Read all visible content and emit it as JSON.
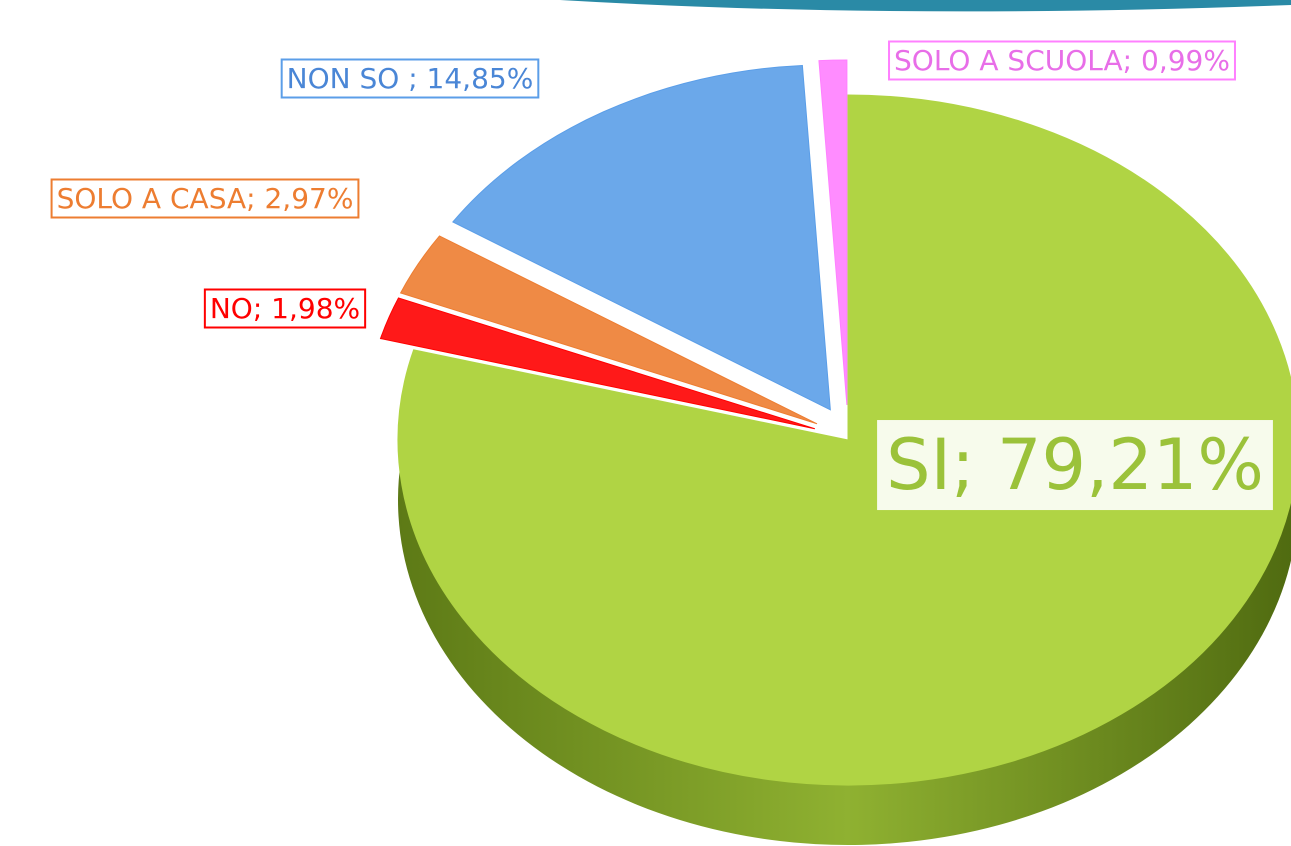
{
  "chart_data": {
    "type": "pie",
    "values": [
      79.21,
      1.98,
      2.97,
      14.85,
      0.99
    ],
    "value_labels": [
      "SI; 79,21%",
      "NO; 1,98%",
      "SOLO A CASA; 2,97%",
      "NON SO ; 14,85%",
      "SOLO A SCUOLA; 0,99%"
    ],
    "colors": [
      "#b0d444",
      "#ff0000",
      "#ed7d31",
      "#5b9ee8",
      "#ff80ff"
    ]
  }
}
